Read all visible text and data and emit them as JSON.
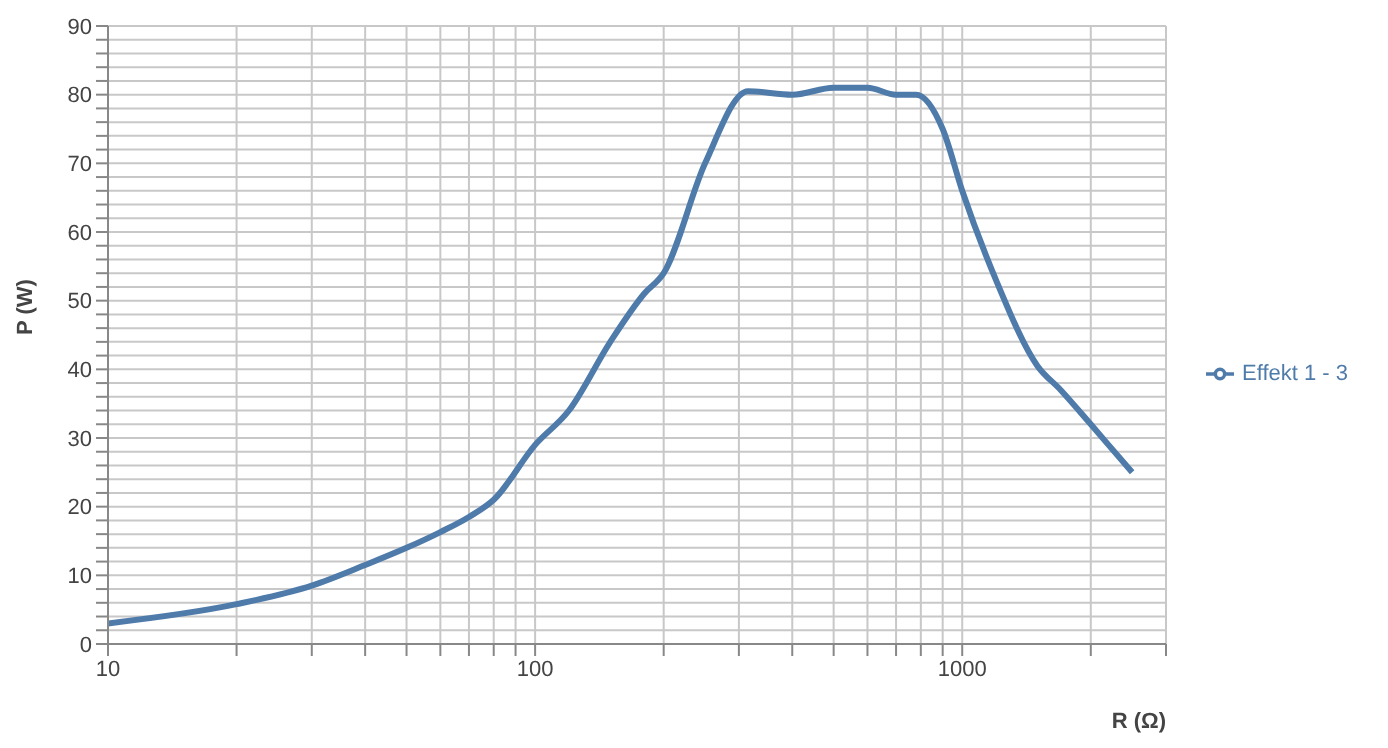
{
  "chart_data": {
    "type": "line",
    "xlabel": "R (Ω)",
    "ylabel": "P (W)",
    "log": "x",
    "grid": true,
    "legend": "right",
    "marker": "none",
    "line_style": "solid",
    "x": [
      10,
      20,
      30,
      40,
      50,
      60,
      70,
      80,
      100,
      120,
      150,
      180,
      200,
      250,
      315,
      400,
      500,
      600,
      700,
      780,
      900,
      1000,
      1200,
      1500,
      1700,
      2000,
      2200,
      2500
    ],
    "series": [
      {
        "name": "Effekt 1 - 3",
        "color": "#4f7bab",
        "values": [
          3,
          5.8,
          8.5,
          11.5,
          14,
          16.3,
          18.5,
          21,
          29,
          34,
          44,
          51,
          54,
          70,
          80.5,
          80,
          81,
          81,
          80,
          80,
          75,
          66,
          53,
          40.5,
          37,
          32,
          29,
          25
        ]
      }
    ],
    "xlim": [
      10,
      3000
    ],
    "xticks": [
      10,
      {
        "value": 20,
        "label": null
      },
      {
        "value": 30,
        "label": null
      },
      {
        "value": 40,
        "label": null
      },
      {
        "value": 50,
        "label": null
      },
      {
        "value": 60,
        "label": null
      },
      {
        "value": 70,
        "label": null
      },
      {
        "value": 80,
        "label": null
      },
      {
        "value": 90,
        "label": null
      },
      100,
      {
        "value": 200,
        "label": null
      },
      {
        "value": 300,
        "label": null
      },
      {
        "value": 400,
        "label": null
      },
      {
        "value": 500,
        "label": null
      },
      {
        "value": 600,
        "label": null
      },
      {
        "value": 700,
        "label": null
      },
      {
        "value": 800,
        "label": null
      },
      {
        "value": 900,
        "label": null
      },
      1000,
      {
        "value": 2000,
        "label": null
      },
      {
        "value": 3000,
        "label": null
      }
    ],
    "ylim": [
      0,
      90
    ],
    "yticks": [
      0,
      {
        "value": 2,
        "label": null
      },
      {
        "value": 4,
        "label": null
      },
      {
        "value": 6,
        "label": null
      },
      {
        "value": 8,
        "label": null
      },
      10,
      {
        "value": 12,
        "label": null
      },
      {
        "value": 14,
        "label": null
      },
      {
        "value": 16,
        "label": null
      },
      {
        "value": 18,
        "label": null
      },
      20,
      {
        "value": 22,
        "label": null
      },
      {
        "value": 24,
        "label": null
      },
      {
        "value": 26,
        "label": null
      },
      {
        "value": 28,
        "label": null
      },
      30,
      {
        "value": 32,
        "label": null
      },
      {
        "value": 34,
        "label": null
      },
      {
        "value": 36,
        "label": null
      },
      {
        "value": 38,
        "label": null
      },
      40,
      {
        "value": 42,
        "label": null
      },
      {
        "value": 44,
        "label": null
      },
      {
        "value": 46,
        "label": null
      },
      {
        "value": 48,
        "label": null
      },
      50,
      {
        "value": 52,
        "label": null
      },
      {
        "value": 54,
        "label": null
      },
      {
        "value": 56,
        "label": null
      },
      {
        "value": 58,
        "label": null
      },
      60,
      {
        "value": 62,
        "label": null
      },
      {
        "value": 64,
        "label": null
      },
      {
        "value": 66,
        "label": null
      },
      {
        "value": 68,
        "label": null
      },
      70,
      {
        "value": 72,
        "label": null
      },
      {
        "value": 74,
        "label": null
      },
      {
        "value": 76,
        "label": null
      },
      {
        "value": 78,
        "label": null
      },
      80,
      {
        "value": 82,
        "label": null
      },
      {
        "value": 84,
        "label": null
      },
      {
        "value": 86,
        "label": null
      },
      {
        "value": 88,
        "label": null
      },
      90
    ]
  }
}
